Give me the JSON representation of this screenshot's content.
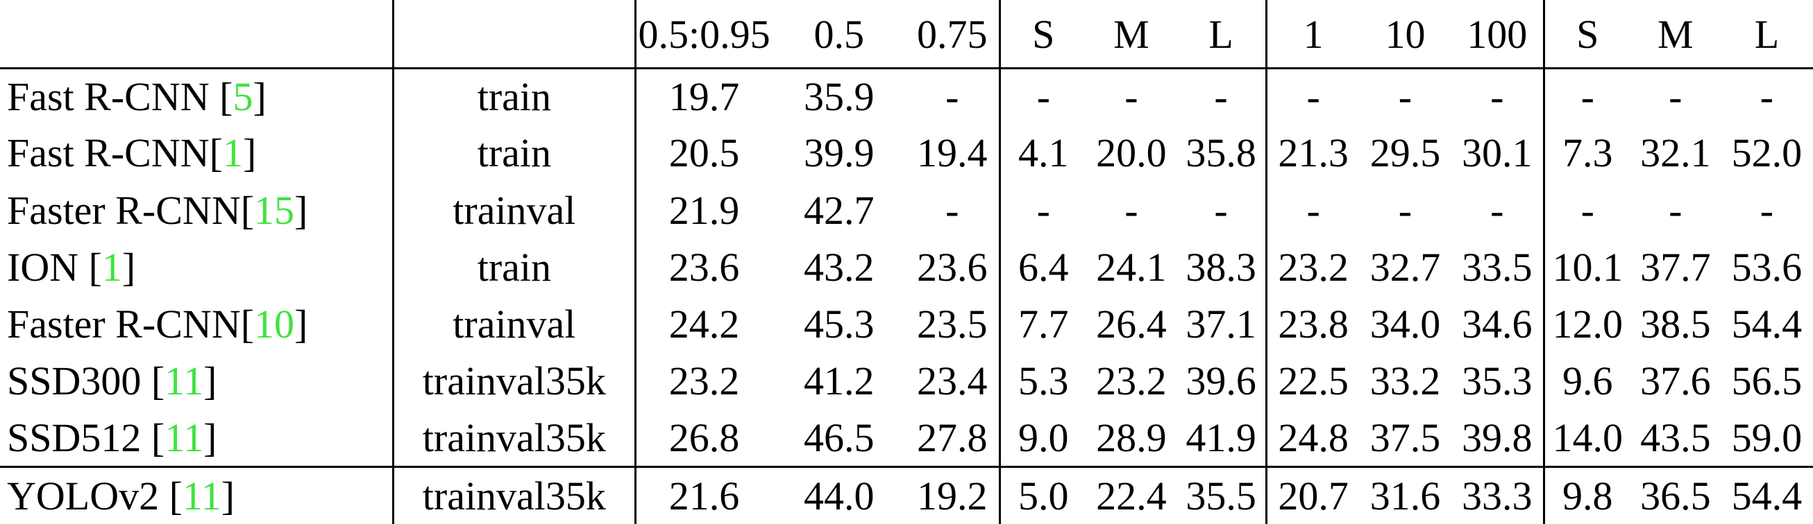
{
  "columns": [
    "",
    "",
    "0.5:0.95",
    "0.5",
    "0.75",
    "S",
    "M",
    "L",
    "1",
    "10",
    "100",
    "S",
    "M",
    "L"
  ],
  "accent_color": "#3fe33f",
  "rows": [
    {
      "method": "Fast R-CNN [",
      "ref": "5",
      "close": "]",
      "data": "train",
      "values": [
        "19.7",
        "35.9",
        "-",
        "-",
        "-",
        "-",
        "-",
        "-",
        "-",
        "-",
        "-",
        "-"
      ],
      "bold": false
    },
    {
      "method": "Fast R-CNN[",
      "ref": "1",
      "close": "]",
      "data": "train",
      "values": [
        "20.5",
        "39.9",
        "19.4",
        "4.1",
        "20.0",
        "35.8",
        "21.3",
        "29.5",
        "30.1",
        "7.3",
        "32.1",
        "52.0"
      ],
      "bold": false
    },
    {
      "method": "Faster R-CNN[",
      "ref": "15",
      "close": "]",
      "data": "trainval",
      "values": [
        "21.9",
        "42.7",
        "-",
        "-",
        "-",
        "-",
        "-",
        "-",
        "-",
        "-",
        "-",
        "-"
      ],
      "bold": false
    },
    {
      "method": "ION [",
      "ref": "1",
      "close": "]",
      "data": "train",
      "values": [
        "23.6",
        "43.2",
        "23.6",
        "6.4",
        "24.1",
        "38.3",
        "23.2",
        "32.7",
        "33.5",
        "10.1",
        "37.7",
        "53.6"
      ],
      "bold": false
    },
    {
      "method": "Faster R-CNN[",
      "ref": "10",
      "close": "]",
      "data": "trainval",
      "values": [
        "24.2",
        "45.3",
        "23.5",
        "7.7",
        "26.4",
        "37.1",
        "23.8",
        "34.0",
        "34.6",
        "12.0",
        "38.5",
        "54.4"
      ],
      "bold": false
    },
    {
      "method": "SSD300 [",
      "ref": "11",
      "close": "]",
      "data": "trainval35k",
      "values": [
        "23.2",
        "41.2",
        "23.4",
        "5.3",
        "23.2",
        "39.6",
        "22.5",
        "33.2",
        "35.3",
        "9.6",
        "37.6",
        "56.5"
      ],
      "bold": false
    },
    {
      "method": "SSD512 [",
      "ref": "11",
      "close": "]",
      "data": "trainval35k",
      "values": [
        "26.8",
        "46.5",
        "27.8",
        "9.0",
        "28.9",
        "41.9",
        "24.8",
        "37.5",
        "39.8",
        "14.0",
        "43.5",
        "59.0"
      ],
      "bold": true
    },
    {
      "method": "YOLOv2 [",
      "ref": "11",
      "close": "]",
      "data": "trainval35k",
      "values": [
        "21.6",
        "44.0",
        "19.2",
        "5.0",
        "22.4",
        "35.5",
        "20.7",
        "31.6",
        "33.3",
        "9.8",
        "36.5",
        "54.4"
      ],
      "bold": false
    }
  ]
}
